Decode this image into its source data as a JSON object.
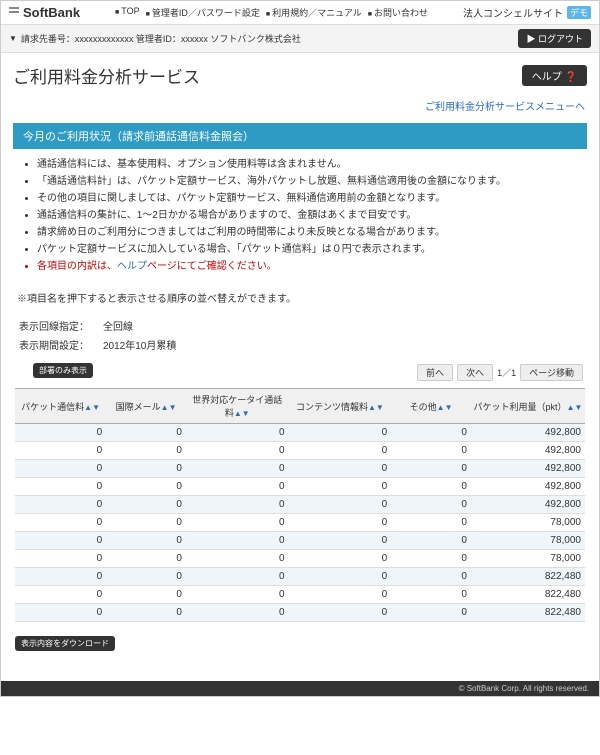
{
  "header": {
    "brand": "SoftBank",
    "nav": [
      "TOP",
      "管理者ID／パスワード設定",
      "利用規約／マニュアル",
      "お問い合わせ"
    ],
    "corp_label": "法人コンシェルサイト",
    "demo": "デモ"
  },
  "sub": {
    "billing_text": "請求先番号：xxxxxxxxxxxxx 管理者ID：xxxxxx ソフトバンク株式会社",
    "logout": "ログアウト"
  },
  "title": "ご利用料金分析サービス",
  "help": "ヘルプ ❓",
  "menu_link": "ご利用料金分析サービスメニューへ",
  "section_title": "今月のご利用状況（請求前通話通信料金照会）",
  "bullets": [
    "通話通信料には、基本使用料、オプション使用料等は含まれません。",
    "「通話通信料計」は、パケット定額サービス、海外パケットし放題、無料通信適用後の金額になります。",
    "その他の項目に関しましては、パケット定額サービス、無料通信適用前の金額となります。",
    "通話通信料の集計に、1～2日かかる場合がありますので、金額はあくまで目安です。",
    "請求締め日のご利用分につきましてはご利用の時間帯により未反映となる場合があります。",
    "パケット定額サービスに加入している場合、「パケット通信料」は０円で表示されます。"
  ],
  "bullet_red_prefix": "各項目の内訳は、",
  "bullet_red_link": "ヘルプ",
  "bullet_red_suffix": "ページにてご確認ください。",
  "note": "※項目名を押下すると表示させる順序の並べ替えができます。",
  "settings": {
    "line_label": "表示回線指定：",
    "line_value": "全回線",
    "period_label": "表示期間設定：",
    "period_value": "2012年10月累積"
  },
  "dept_btn": "部署のみ表示",
  "pager": {
    "prev": "前へ",
    "next": "次へ",
    "pos": "1／1",
    "jump": "ページ移動"
  },
  "table": {
    "columns": [
      "パケット通信料",
      "国際メール",
      "世界対応ケータイ通話料",
      "コンテンツ情報料",
      "その他",
      "パケット利用量（pkt）"
    ],
    "sort_marks": "▲▼",
    "rows": [
      [
        0,
        0,
        0,
        0,
        0,
        "492,800"
      ],
      [
        0,
        0,
        0,
        0,
        0,
        "492,800"
      ],
      [
        0,
        0,
        0,
        0,
        0,
        "492,800"
      ],
      [
        0,
        0,
        0,
        0,
        0,
        "492,800"
      ],
      [
        0,
        0,
        0,
        0,
        0,
        "492,800"
      ],
      [
        0,
        0,
        0,
        0,
        0,
        "78,000"
      ],
      [
        0,
        0,
        0,
        0,
        0,
        "78,000"
      ],
      [
        0,
        0,
        0,
        0,
        0,
        "78,000"
      ],
      [
        0,
        0,
        0,
        0,
        0,
        "822,480"
      ],
      [
        0,
        0,
        0,
        0,
        0,
        "822,480"
      ],
      [
        0,
        0,
        0,
        0,
        0,
        "822,480"
      ]
    ],
    "col_widths": [
      "16%",
      "14%",
      "18%",
      "18%",
      "14%",
      "20%"
    ]
  },
  "download_btn": "表示内容をダウンロード",
  "footer": "© SoftBank Corp. All rights reserved."
}
